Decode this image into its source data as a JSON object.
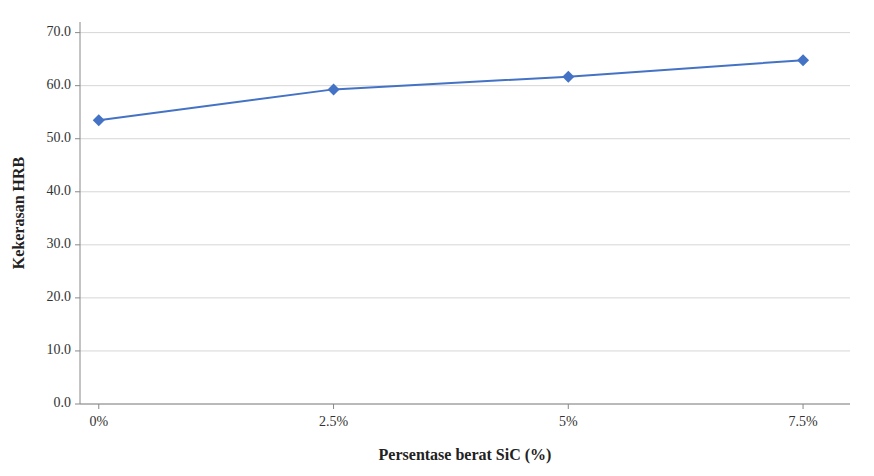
{
  "chart_data": {
    "type": "line",
    "x_label": "Persentase berat SiC (%)",
    "y_label": "Kekerasan HRB",
    "x": [
      0,
      2.5,
      5,
      7.5
    ],
    "values": [
      53.5,
      59.3,
      61.7,
      64.8
    ],
    "color": "#4472C4",
    "marker": "diamond",
    "xlim": [
      -0.2,
      8.0
    ],
    "ylim": [
      0,
      72
    ],
    "xticks": [
      {
        "value": 0,
        "label": "0%"
      },
      {
        "value": 2.5,
        "label": "2.5%"
      },
      {
        "value": 5,
        "label": "5%"
      },
      {
        "value": 7.5,
        "label": "7.5%"
      }
    ],
    "yticks": [
      {
        "value": 0,
        "label": "0.0"
      },
      {
        "value": 10,
        "label": "10.0"
      },
      {
        "value": 20,
        "label": "20.0"
      },
      {
        "value": 30,
        "label": "30.0"
      },
      {
        "value": 40,
        "label": "40.0"
      },
      {
        "value": 50,
        "label": "50.0"
      },
      {
        "value": 60,
        "label": "60.0"
      },
      {
        "value": 70,
        "label": "70.0"
      }
    ],
    "grid": true
  }
}
